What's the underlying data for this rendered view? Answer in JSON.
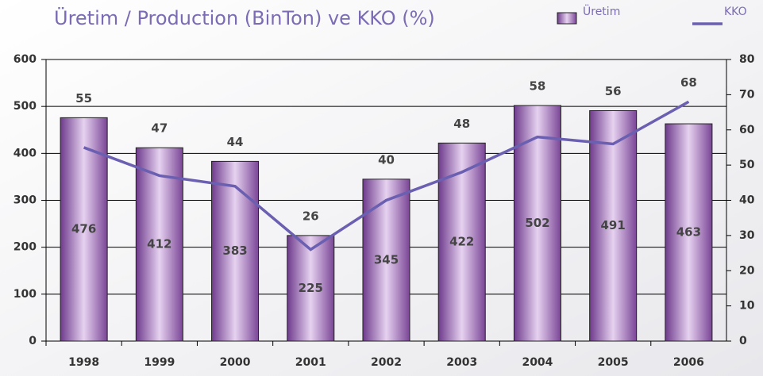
{
  "chart_data": {
    "type": "bar",
    "title": "Üretim / Production (BinTon)  ve KKO (%)",
    "categories": [
      "1998",
      "1999",
      "2000",
      "2001",
      "2002",
      "2003",
      "2004",
      "2005",
      "2006"
    ],
    "series": [
      {
        "name": "Üretim",
        "type": "bar",
        "color": "#9a5fb4",
        "values": [
          476,
          412,
          383,
          225,
          345,
          422,
          502,
          491,
          463
        ]
      },
      {
        "name": "KKO",
        "type": "line",
        "axis": "y2",
        "color": "#6a5fb0",
        "values": [
          55,
          47,
          44,
          26,
          40,
          48,
          58,
          56,
          68
        ]
      }
    ],
    "ylim": [
      0,
      600
    ],
    "yticks": [
      0,
      100,
      200,
      300,
      400,
      500,
      600
    ],
    "y2lim": [
      0,
      80
    ],
    "y2ticks": [
      0,
      10,
      20,
      30,
      40,
      50,
      60,
      70,
      80
    ],
    "grid": true,
    "legend": "top-right"
  }
}
